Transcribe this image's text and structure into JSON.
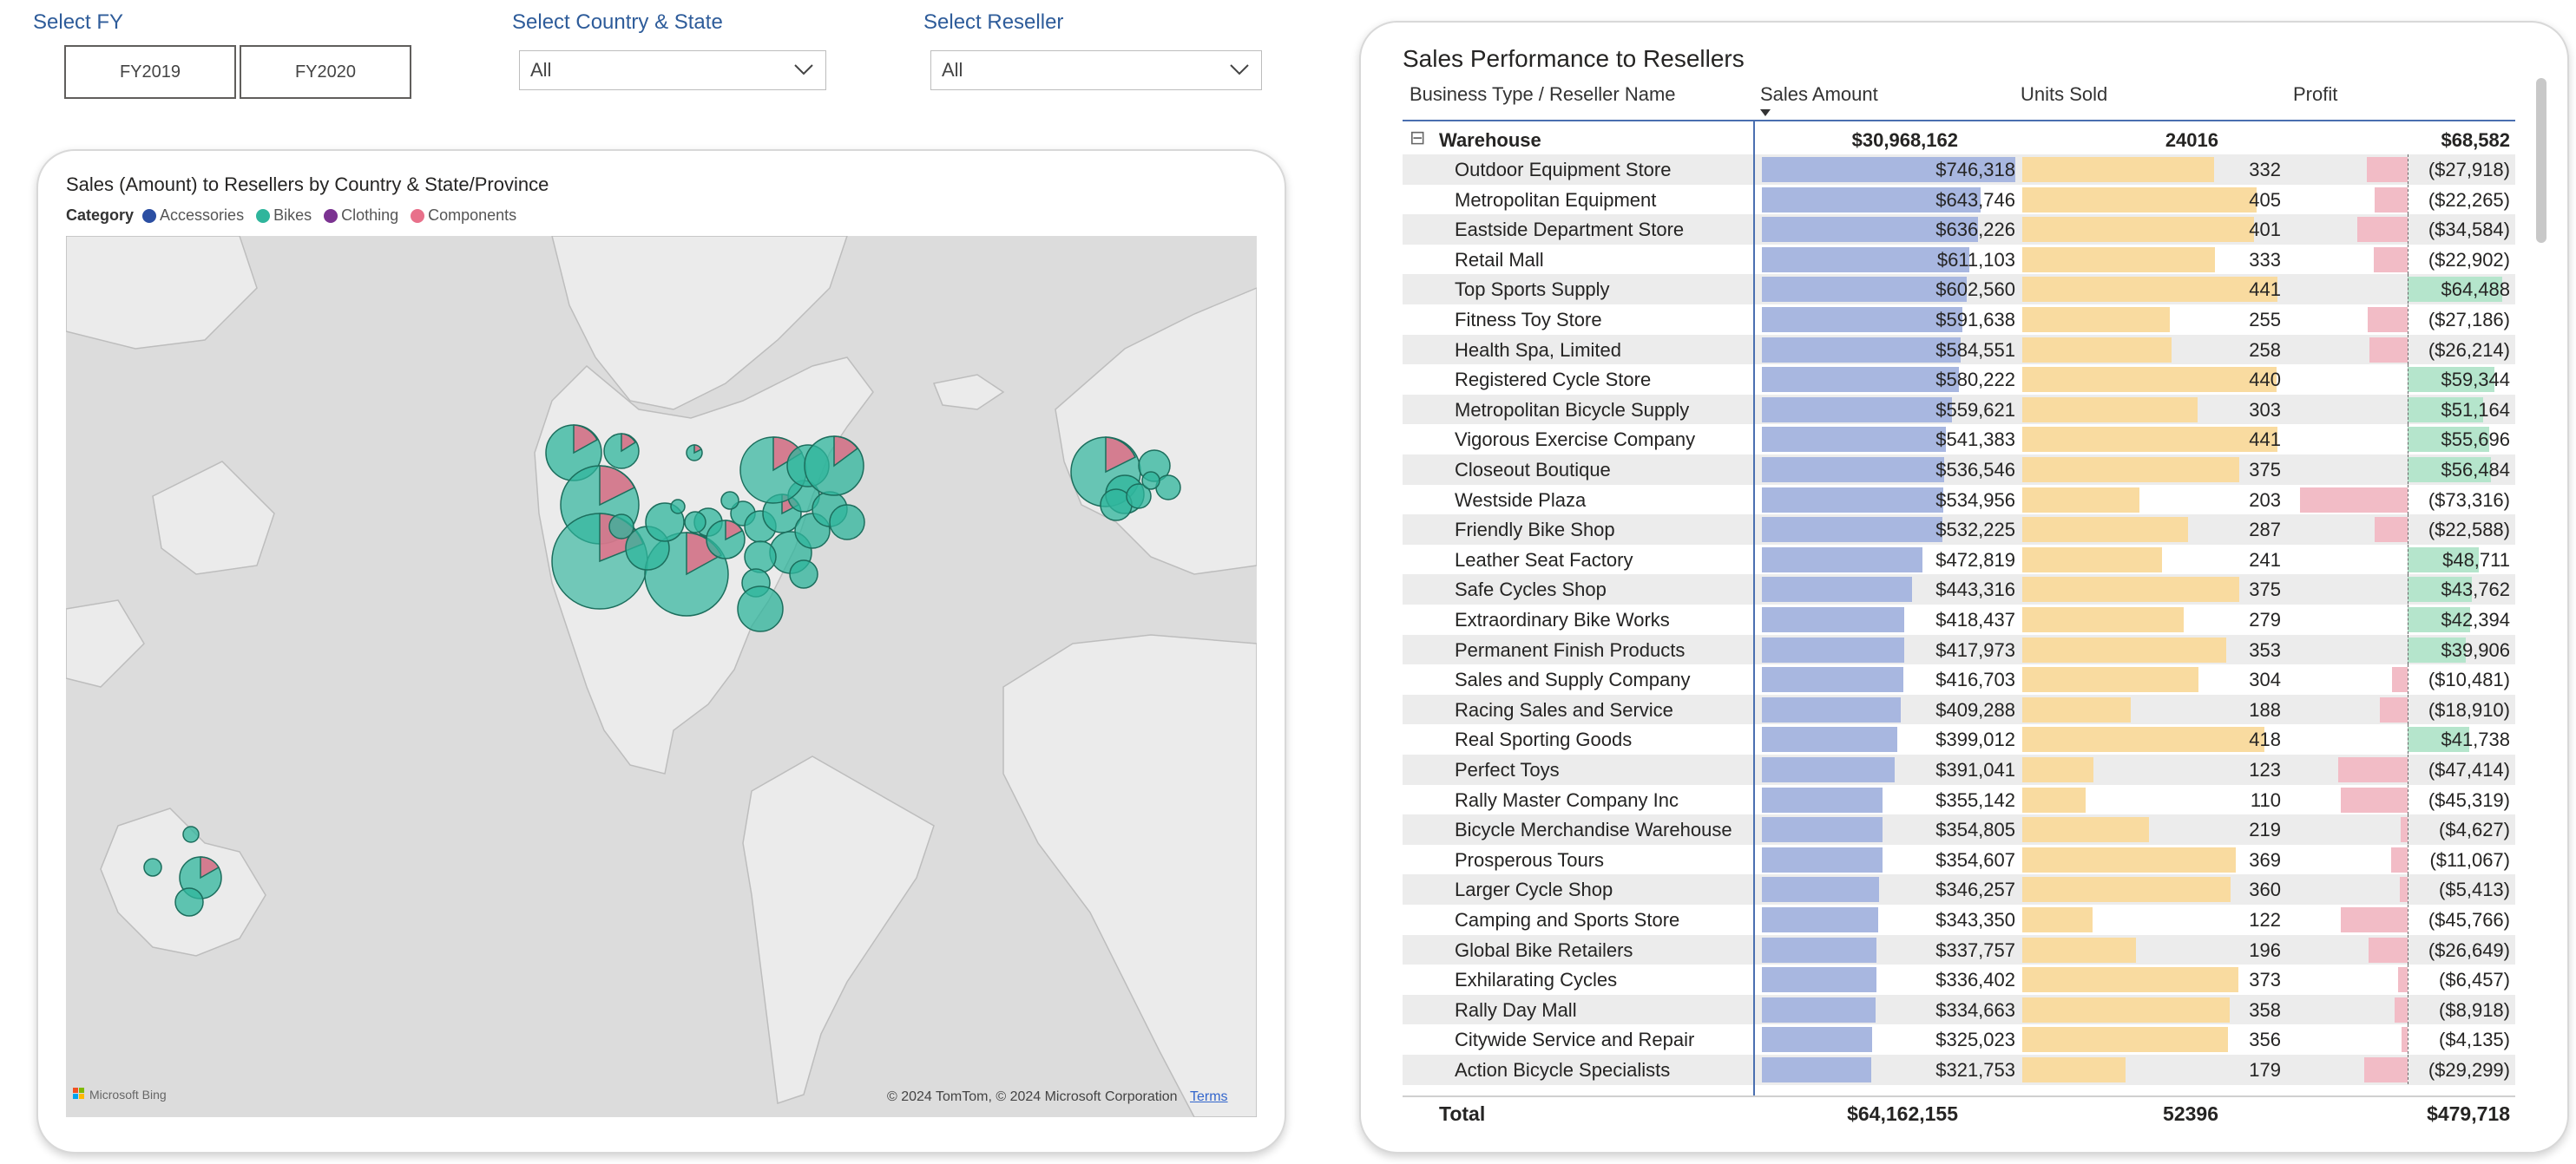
{
  "slicers": {
    "fy": {
      "title": "Select FY",
      "options": [
        "FY2019",
        "FY2020"
      ]
    },
    "country_state": {
      "title": "Select Country & State",
      "value": "All"
    },
    "reseller": {
      "title": "Select Reseller",
      "value": "All"
    }
  },
  "map": {
    "title": "Sales (Amount) to Resellers by Country & State/Province",
    "legend_title": "Category",
    "legend": [
      {
        "label": "Accessories",
        "color": "#2b4ea2"
      },
      {
        "label": "Bikes",
        "color": "#2fb59c"
      },
      {
        "label": "Clothing",
        "color": "#7b3391"
      },
      {
        "label": "Components",
        "color": "#e8708a"
      }
    ],
    "attribution": "© 2024 TomTom, © 2024 Microsoft Corporation",
    "terms_label": "Terms",
    "bing_label": "Microsoft Bing"
  },
  "table": {
    "title": "Sales Performance to Resellers",
    "columns": [
      "Business Type / Reseller Name",
      "Sales Amount",
      "Units Sold",
      "Profit"
    ],
    "group": {
      "expand_icon": "⊟",
      "name": "Warehouse",
      "sales": "$30,968,162",
      "units": "24016",
      "profit": "$68,582"
    },
    "rows": [
      {
        "name": "Outdoor Equipment Store",
        "sales": "$746,318",
        "sales_v": 746318,
        "units": "332",
        "units_v": 332,
        "profit": "($27,918)",
        "profit_v": -27918
      },
      {
        "name": "Metropolitan Equipment",
        "sales": "$643,746",
        "sales_v": 643746,
        "units": "405",
        "units_v": 405,
        "profit": "($22,265)",
        "profit_v": -22265
      },
      {
        "name": "Eastside Department Store",
        "sales": "$636,226",
        "sales_v": 636226,
        "units": "401",
        "units_v": 401,
        "profit": "($34,584)",
        "profit_v": -34584
      },
      {
        "name": "Retail Mall",
        "sales": "$611,103",
        "sales_v": 611103,
        "units": "333",
        "units_v": 333,
        "profit": "($22,902)",
        "profit_v": -22902
      },
      {
        "name": "Top Sports Supply",
        "sales": "$602,560",
        "sales_v": 602560,
        "units": "441",
        "units_v": 441,
        "profit": "$64,488",
        "profit_v": 64488
      },
      {
        "name": "Fitness Toy Store",
        "sales": "$591,638",
        "sales_v": 591638,
        "units": "255",
        "units_v": 255,
        "profit": "($27,186)",
        "profit_v": -27186
      },
      {
        "name": "Health Spa, Limited",
        "sales": "$584,551",
        "sales_v": 584551,
        "units": "258",
        "units_v": 258,
        "profit": "($26,214)",
        "profit_v": -26214
      },
      {
        "name": "Registered Cycle Store",
        "sales": "$580,222",
        "sales_v": 580222,
        "units": "440",
        "units_v": 440,
        "profit": "$59,344",
        "profit_v": 59344
      },
      {
        "name": "Metropolitan Bicycle Supply",
        "sales": "$559,621",
        "sales_v": 559621,
        "units": "303",
        "units_v": 303,
        "profit": "$51,164",
        "profit_v": 51164
      },
      {
        "name": "Vigorous Exercise Company",
        "sales": "$541,383",
        "sales_v": 541383,
        "units": "441",
        "units_v": 441,
        "profit": "$55,696",
        "profit_v": 55696
      },
      {
        "name": "Closeout Boutique",
        "sales": "$536,546",
        "sales_v": 536546,
        "units": "375",
        "units_v": 375,
        "profit": "$56,484",
        "profit_v": 56484
      },
      {
        "name": "Westside Plaza",
        "sales": "$534,956",
        "sales_v": 534956,
        "units": "203",
        "units_v": 203,
        "profit": "($73,316)",
        "profit_v": -73316
      },
      {
        "name": "Friendly Bike Shop",
        "sales": "$532,225",
        "sales_v": 532225,
        "units": "287",
        "units_v": 287,
        "profit": "($22,588)",
        "profit_v": -22588
      },
      {
        "name": "Leather Seat Factory",
        "sales": "$472,819",
        "sales_v": 472819,
        "units": "241",
        "units_v": 241,
        "profit": "$48,711",
        "profit_v": 48711
      },
      {
        "name": "Safe Cycles Shop",
        "sales": "$443,316",
        "sales_v": 443316,
        "units": "375",
        "units_v": 375,
        "profit": "$43,762",
        "profit_v": 43762
      },
      {
        "name": "Extraordinary Bike Works",
        "sales": "$418,437",
        "sales_v": 418437,
        "units": "279",
        "units_v": 279,
        "profit": "$42,394",
        "profit_v": 42394
      },
      {
        "name": "Permanent Finish Products",
        "sales": "$417,973",
        "sales_v": 417973,
        "units": "353",
        "units_v": 353,
        "profit": "$39,906",
        "profit_v": 39906
      },
      {
        "name": "Sales and Supply Company",
        "sales": "$416,703",
        "sales_v": 416703,
        "units": "304",
        "units_v": 304,
        "profit": "($10,481)",
        "profit_v": -10481
      },
      {
        "name": "Racing Sales and Service",
        "sales": "$409,288",
        "sales_v": 409288,
        "units": "188",
        "units_v": 188,
        "profit": "($18,910)",
        "profit_v": -18910
      },
      {
        "name": "Real Sporting Goods",
        "sales": "$399,012",
        "sales_v": 399012,
        "units": "418",
        "units_v": 418,
        "profit": "$41,738",
        "profit_v": 41738
      },
      {
        "name": "Perfect Toys",
        "sales": "$391,041",
        "sales_v": 391041,
        "units": "123",
        "units_v": 123,
        "profit": "($47,414)",
        "profit_v": -47414
      },
      {
        "name": "Rally Master Company Inc",
        "sales": "$355,142",
        "sales_v": 355142,
        "units": "110",
        "units_v": 110,
        "profit": "($45,319)",
        "profit_v": -45319
      },
      {
        "name": "Bicycle Merchandise Warehouse",
        "sales": "$354,805",
        "sales_v": 354805,
        "units": "219",
        "units_v": 219,
        "profit": "($4,627)",
        "profit_v": -4627
      },
      {
        "name": "Prosperous Tours",
        "sales": "$354,607",
        "sales_v": 354607,
        "units": "369",
        "units_v": 369,
        "profit": "($11,067)",
        "profit_v": -11067
      },
      {
        "name": "Larger Cycle Shop",
        "sales": "$346,257",
        "sales_v": 346257,
        "units": "360",
        "units_v": 360,
        "profit": "($5,413)",
        "profit_v": -5413
      },
      {
        "name": "Camping and Sports Store",
        "sales": "$343,350",
        "sales_v": 343350,
        "units": "122",
        "units_v": 122,
        "profit": "($45,766)",
        "profit_v": -45766
      },
      {
        "name": "Global Bike Retailers",
        "sales": "$337,757",
        "sales_v": 337757,
        "units": "196",
        "units_v": 196,
        "profit": "($26,649)",
        "profit_v": -26649
      },
      {
        "name": "Exhilarating Cycles",
        "sales": "$336,402",
        "sales_v": 336402,
        "units": "373",
        "units_v": 373,
        "profit": "($6,457)",
        "profit_v": -6457
      },
      {
        "name": "Rally Day Mall",
        "sales": "$334,663",
        "sales_v": 334663,
        "units": "358",
        "units_v": 358,
        "profit": "($8,918)",
        "profit_v": -8918
      },
      {
        "name": "Citywide Service and Repair",
        "sales": "$325,023",
        "sales_v": 325023,
        "units": "356",
        "units_v": 356,
        "profit": "($4,135)",
        "profit_v": -4135
      },
      {
        "name": "Action Bicycle Specialists",
        "sales": "$321,753",
        "sales_v": 321753,
        "units": "179",
        "units_v": 179,
        "profit": "($29,299)",
        "profit_v": -29299
      }
    ],
    "total": {
      "label": "Total",
      "sales": "$64,162,155",
      "units": "52396",
      "profit": "$479,718"
    }
  }
}
